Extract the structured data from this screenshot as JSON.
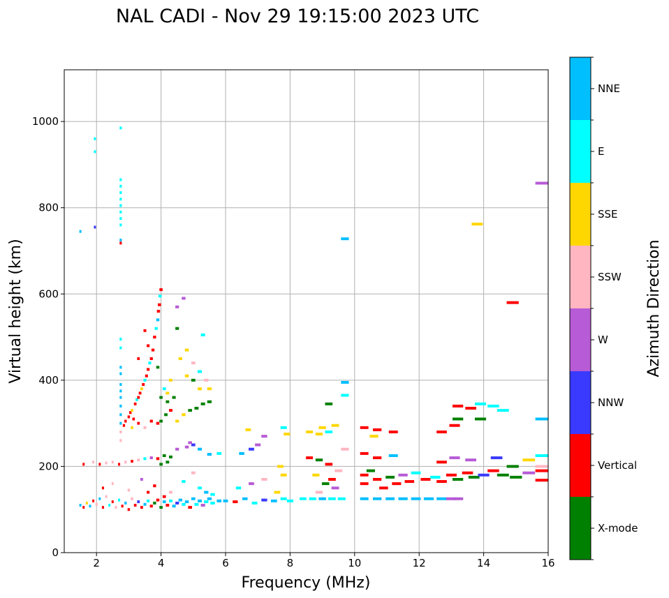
{
  "chart_data": {
    "type": "scatter",
    "title": "NAL CADI - Nov 29 19:15:00 2023 UTC",
    "xlabel": "Frequency (MHz)",
    "ylabel": "Virtual height (km)",
    "xlim": [
      1,
      16
    ],
    "ylim": [
      0,
      1120
    ],
    "xticks": [
      2,
      4,
      6,
      8,
      10,
      12,
      14,
      16
    ],
    "yticks": [
      0,
      200,
      400,
      600,
      800,
      1000
    ],
    "grid": true,
    "colorbar": {
      "label": "Azimuth Direction",
      "categories": [
        "X-mode",
        "Vertical",
        "NNW",
        "W",
        "SSW",
        "SSE",
        "E",
        "NNE"
      ],
      "colors": [
        "#008000",
        "#ff0000",
        "#3a3aff",
        "#b75bd6",
        "#ffb6c1",
        "#ffd700",
        "#00ffff",
        "#00bfff"
      ]
    },
    "points": [
      [
        1.5,
        745,
        7
      ],
      [
        1.95,
        755,
        2
      ],
      [
        1.95,
        960,
        6
      ],
      [
        1.95,
        930,
        6
      ],
      [
        9.7,
        728,
        7
      ],
      [
        13.8,
        762,
        5
      ],
      [
        14.9,
        580,
        1
      ],
      [
        15.8,
        857,
        3
      ],
      [
        15.8,
        310,
        7
      ],
      [
        9.7,
        395,
        7
      ],
      [
        9.7,
        365,
        6
      ],
      [
        2.75,
        985,
        6
      ],
      [
        2.75,
        865,
        6
      ],
      [
        2.75,
        850,
        6
      ],
      [
        2.75,
        835,
        6
      ],
      [
        2.75,
        820,
        6
      ],
      [
        2.75,
        805,
        6
      ],
      [
        2.75,
        790,
        6
      ],
      [
        2.75,
        775,
        6
      ],
      [
        2.75,
        760,
        6
      ],
      [
        2.75,
        725,
        7
      ],
      [
        2.75,
        718,
        1
      ],
      [
        2.75,
        495,
        6
      ],
      [
        2.75,
        475,
        6
      ],
      [
        2.75,
        430,
        7
      ],
      [
        2.75,
        415,
        7
      ],
      [
        2.75,
        390,
        7
      ],
      [
        2.75,
        375,
        7
      ],
      [
        2.75,
        360,
        7
      ],
      [
        2.75,
        340,
        7
      ],
      [
        2.75,
        320,
        7
      ],
      [
        2.75,
        300,
        7
      ],
      [
        2.75,
        280,
        4
      ],
      [
        2.75,
        260,
        4
      ],
      [
        2.85,
        295,
        1
      ],
      [
        2.9,
        305,
        1
      ],
      [
        3.0,
        315,
        1
      ],
      [
        3.05,
        325,
        1
      ],
      [
        3.1,
        330,
        5
      ],
      [
        3.15,
        310,
        1
      ],
      [
        3.2,
        345,
        1
      ],
      [
        3.25,
        355,
        6
      ],
      [
        3.3,
        360,
        1
      ],
      [
        3.35,
        370,
        1
      ],
      [
        3.4,
        380,
        5
      ],
      [
        3.45,
        390,
        1
      ],
      [
        3.5,
        400,
        6
      ],
      [
        3.55,
        410,
        1
      ],
      [
        3.6,
        425,
        1
      ],
      [
        3.65,
        440,
        6
      ],
      [
        3.7,
        450,
        1
      ],
      [
        3.75,
        470,
        1
      ],
      [
        3.8,
        500,
        1
      ],
      [
        3.85,
        520,
        6
      ],
      [
        3.9,
        540,
        7
      ],
      [
        3.92,
        560,
        1
      ],
      [
        3.95,
        575,
        1
      ],
      [
        3.97,
        595,
        6
      ],
      [
        4.0,
        610,
        1
      ],
      [
        3.6,
        480,
        1
      ],
      [
        3.5,
        515,
        1
      ],
      [
        3.3,
        450,
        1
      ],
      [
        3.9,
        430,
        0
      ],
      [
        3.1,
        290,
        5
      ],
      [
        3.3,
        300,
        1
      ],
      [
        3.5,
        290,
        4
      ],
      [
        3.7,
        305,
        1
      ],
      [
        3.9,
        300,
        1
      ],
      [
        4.0,
        305,
        0
      ],
      [
        4.15,
        320,
        0
      ],
      [
        4.3,
        330,
        1
      ],
      [
        4.5,
        305,
        5
      ],
      [
        4.7,
        320,
        5
      ],
      [
        4.9,
        330,
        0
      ],
      [
        5.1,
        335,
        0
      ],
      [
        5.3,
        345,
        0
      ],
      [
        5.5,
        350,
        0
      ],
      [
        5.2,
        380,
        5
      ],
      [
        5.0,
        400,
        0
      ],
      [
        4.8,
        410,
        5
      ],
      [
        4.4,
        360,
        0
      ],
      [
        4.2,
        370,
        5
      ],
      [
        4.1,
        380,
        6
      ],
      [
        4.2,
        350,
        0
      ],
      [
        4.0,
        360,
        0
      ],
      [
        4.3,
        400,
        5
      ],
      [
        4.6,
        450,
        5
      ],
      [
        4.8,
        470,
        5
      ],
      [
        5.0,
        440,
        4
      ],
      [
        5.2,
        420,
        6
      ],
      [
        5.4,
        400,
        4
      ],
      [
        4.5,
        570,
        3
      ],
      [
        4.7,
        590,
        3
      ],
      [
        4.5,
        520,
        0
      ],
      [
        5.3,
        505,
        6
      ],
      [
        5.5,
        380,
        5
      ],
      [
        1.6,
        205,
        1
      ],
      [
        1.9,
        210,
        4
      ],
      [
        2.1,
        205,
        1
      ],
      [
        2.3,
        208,
        4
      ],
      [
        2.5,
        210,
        4
      ],
      [
        2.7,
        205,
        1
      ],
      [
        2.9,
        210,
        4
      ],
      [
        3.1,
        212,
        1
      ],
      [
        3.3,
        215,
        4
      ],
      [
        3.5,
        218,
        6
      ],
      [
        3.7,
        220,
        3
      ],
      [
        3.9,
        218,
        1
      ],
      [
        4.1,
        225,
        0
      ],
      [
        4.3,
        222,
        0
      ],
      [
        4.5,
        240,
        3
      ],
      [
        4.8,
        245,
        3
      ],
      [
        5.0,
        250,
        2
      ],
      [
        5.2,
        240,
        7
      ],
      [
        5.5,
        228,
        7
      ],
      [
        5.8,
        230,
        6
      ],
      [
        4.9,
        255,
        3
      ],
      [
        4.2,
        210,
        0
      ],
      [
        4.0,
        205,
        0
      ],
      [
        1.5,
        110,
        7
      ],
      [
        1.6,
        105,
        1
      ],
      [
        1.7,
        115,
        5
      ],
      [
        1.8,
        108,
        7
      ],
      [
        1.9,
        120,
        1
      ],
      [
        2.0,
        112,
        4
      ],
      [
        2.1,
        125,
        7
      ],
      [
        2.2,
        105,
        1
      ],
      [
        2.3,
        130,
        4
      ],
      [
        2.4,
        110,
        6
      ],
      [
        2.5,
        118,
        1
      ],
      [
        2.6,
        105,
        4
      ],
      [
        2.7,
        122,
        6
      ],
      [
        2.8,
        108,
        1
      ],
      [
        2.9,
        115,
        7
      ],
      [
        3.0,
        100,
        1
      ],
      [
        3.1,
        125,
        4
      ],
      [
        3.2,
        110,
        1
      ],
      [
        3.3,
        118,
        2
      ],
      [
        3.4,
        105,
        1
      ],
      [
        3.5,
        112,
        7
      ],
      [
        3.6,
        120,
        6
      ],
      [
        3.7,
        108,
        1
      ],
      [
        3.8,
        115,
        0
      ],
      [
        3.9,
        122,
        1
      ],
      [
        4.0,
        105,
        0
      ],
      [
        4.1,
        118,
        7
      ],
      [
        4.2,
        110,
        1
      ],
      [
        4.3,
        120,
        6
      ],
      [
        4.4,
        108,
        7
      ],
      [
        4.5,
        115,
        2
      ],
      [
        4.6,
        122,
        7
      ],
      [
        4.7,
        112,
        6
      ],
      [
        4.8,
        118,
        7
      ],
      [
        4.9,
        105,
        1
      ],
      [
        5.0,
        125,
        7
      ],
      [
        5.1,
        112,
        6
      ],
      [
        5.2,
        120,
        7
      ],
      [
        5.3,
        110,
        3
      ],
      [
        5.4,
        118,
        6
      ],
      [
        5.5,
        125,
        7
      ],
      [
        5.6,
        115,
        6
      ],
      [
        5.8,
        120,
        7
      ],
      [
        2.2,
        150,
        1
      ],
      [
        2.5,
        160,
        4
      ],
      [
        3.0,
        145,
        4
      ],
      [
        3.4,
        170,
        3
      ],
      [
        3.8,
        155,
        1
      ],
      [
        4.3,
        140,
        4
      ],
      [
        4.7,
        165,
        6
      ],
      [
        5.2,
        150,
        6
      ],
      [
        5.4,
        140,
        7
      ],
      [
        5.6,
        135,
        6
      ],
      [
        5.0,
        185,
        4
      ],
      [
        4.1,
        130,
        1
      ],
      [
        3.6,
        140,
        1
      ],
      [
        6.0,
        120,
        7
      ],
      [
        6.3,
        118,
        1
      ],
      [
        6.6,
        125,
        7
      ],
      [
        6.9,
        115,
        6
      ],
      [
        7.2,
        122,
        2
      ],
      [
        7.5,
        120,
        7
      ],
      [
        7.8,
        125,
        6
      ],
      [
        8.0,
        120,
        6
      ],
      [
        6.4,
        150,
        6
      ],
      [
        6.8,
        160,
        3
      ],
      [
        7.2,
        170,
        4
      ],
      [
        7.6,
        140,
        5
      ],
      [
        7.8,
        180,
        5
      ],
      [
        7.7,
        200,
        5
      ],
      [
        6.5,
        230,
        7
      ],
      [
        6.8,
        240,
        2
      ],
      [
        7.0,
        250,
        3
      ],
      [
        7.2,
        270,
        3
      ],
      [
        7.8,
        290,
        6
      ],
      [
        7.9,
        275,
        5
      ],
      [
        6.7,
        285,
        5
      ],
      [
        8.4,
        125,
        6
      ],
      [
        8.7,
        125,
        6
      ],
      [
        9.0,
        125,
        7
      ],
      [
        9.3,
        125,
        6
      ],
      [
        9.6,
        125,
        6
      ],
      [
        8.6,
        280,
        5
      ],
      [
        8.9,
        275,
        5
      ],
      [
        9.2,
        280,
        6
      ],
      [
        9.0,
        290,
        5
      ],
      [
        9.4,
        295,
        5
      ],
      [
        8.6,
        220,
        1
      ],
      [
        8.9,
        215,
        0
      ],
      [
        9.2,
        205,
        1
      ],
      [
        9.5,
        190,
        4
      ],
      [
        8.8,
        180,
        5
      ],
      [
        9.1,
        160,
        0
      ],
      [
        9.4,
        150,
        3
      ],
      [
        8.9,
        140,
        4
      ],
      [
        9.3,
        170,
        1
      ],
      [
        9.7,
        240,
        4
      ],
      [
        9.2,
        345,
        0
      ],
      [
        10.3,
        125,
        7
      ],
      [
        10.7,
        125,
        7
      ],
      [
        11.1,
        125,
        7
      ],
      [
        11.5,
        125,
        7
      ],
      [
        11.9,
        125,
        7
      ],
      [
        12.3,
        125,
        7
      ],
      [
        12.7,
        125,
        7
      ],
      [
        13.0,
        125,
        3
      ],
      [
        13.2,
        125,
        3
      ],
      [
        10.3,
        180,
        1
      ],
      [
        10.3,
        160,
        1
      ],
      [
        10.5,
        190,
        0
      ],
      [
        10.7,
        170,
        1
      ],
      [
        10.9,
        150,
        1
      ],
      [
        11.1,
        175,
        0
      ],
      [
        11.3,
        160,
        1
      ],
      [
        11.5,
        180,
        3
      ],
      [
        11.7,
        165,
        1
      ],
      [
        11.9,
        185,
        6
      ],
      [
        12.2,
        170,
        1
      ],
      [
        12.5,
        175,
        6
      ],
      [
        12.7,
        165,
        1
      ],
      [
        13.0,
        180,
        1
      ],
      [
        13.2,
        170,
        0
      ],
      [
        13.5,
        185,
        1
      ],
      [
        13.7,
        175,
        0
      ],
      [
        14.0,
        180,
        2
      ],
      [
        14.3,
        190,
        1
      ],
      [
        14.6,
        180,
        0
      ],
      [
        15.0,
        175,
        0
      ],
      [
        15.4,
        185,
        3
      ],
      [
        15.8,
        190,
        1
      ],
      [
        15.8,
        200,
        4
      ],
      [
        15.8,
        168,
        1
      ],
      [
        12.7,
        210,
        1
      ],
      [
        13.1,
        220,
        3
      ],
      [
        13.6,
        215,
        3
      ],
      [
        14.4,
        220,
        2
      ],
      [
        14.9,
        200,
        0
      ],
      [
        15.4,
        215,
        5
      ],
      [
        15.8,
        225,
        6
      ],
      [
        10.3,
        230,
        1
      ],
      [
        10.7,
        220,
        1
      ],
      [
        11.2,
        225,
        7
      ],
      [
        10.3,
        290,
        1
      ],
      [
        10.7,
        285,
        1
      ],
      [
        11.2,
        280,
        1
      ],
      [
        10.6,
        270,
        5
      ],
      [
        12.7,
        280,
        1
      ],
      [
        13.1,
        295,
        1
      ],
      [
        13.2,
        340,
        1
      ],
      [
        13.6,
        335,
        1
      ],
      [
        13.2,
        310,
        0
      ],
      [
        13.9,
        310,
        0
      ],
      [
        13.9,
        345,
        6
      ],
      [
        14.3,
        340,
        6
      ],
      [
        14.6,
        330,
        6
      ]
    ]
  }
}
